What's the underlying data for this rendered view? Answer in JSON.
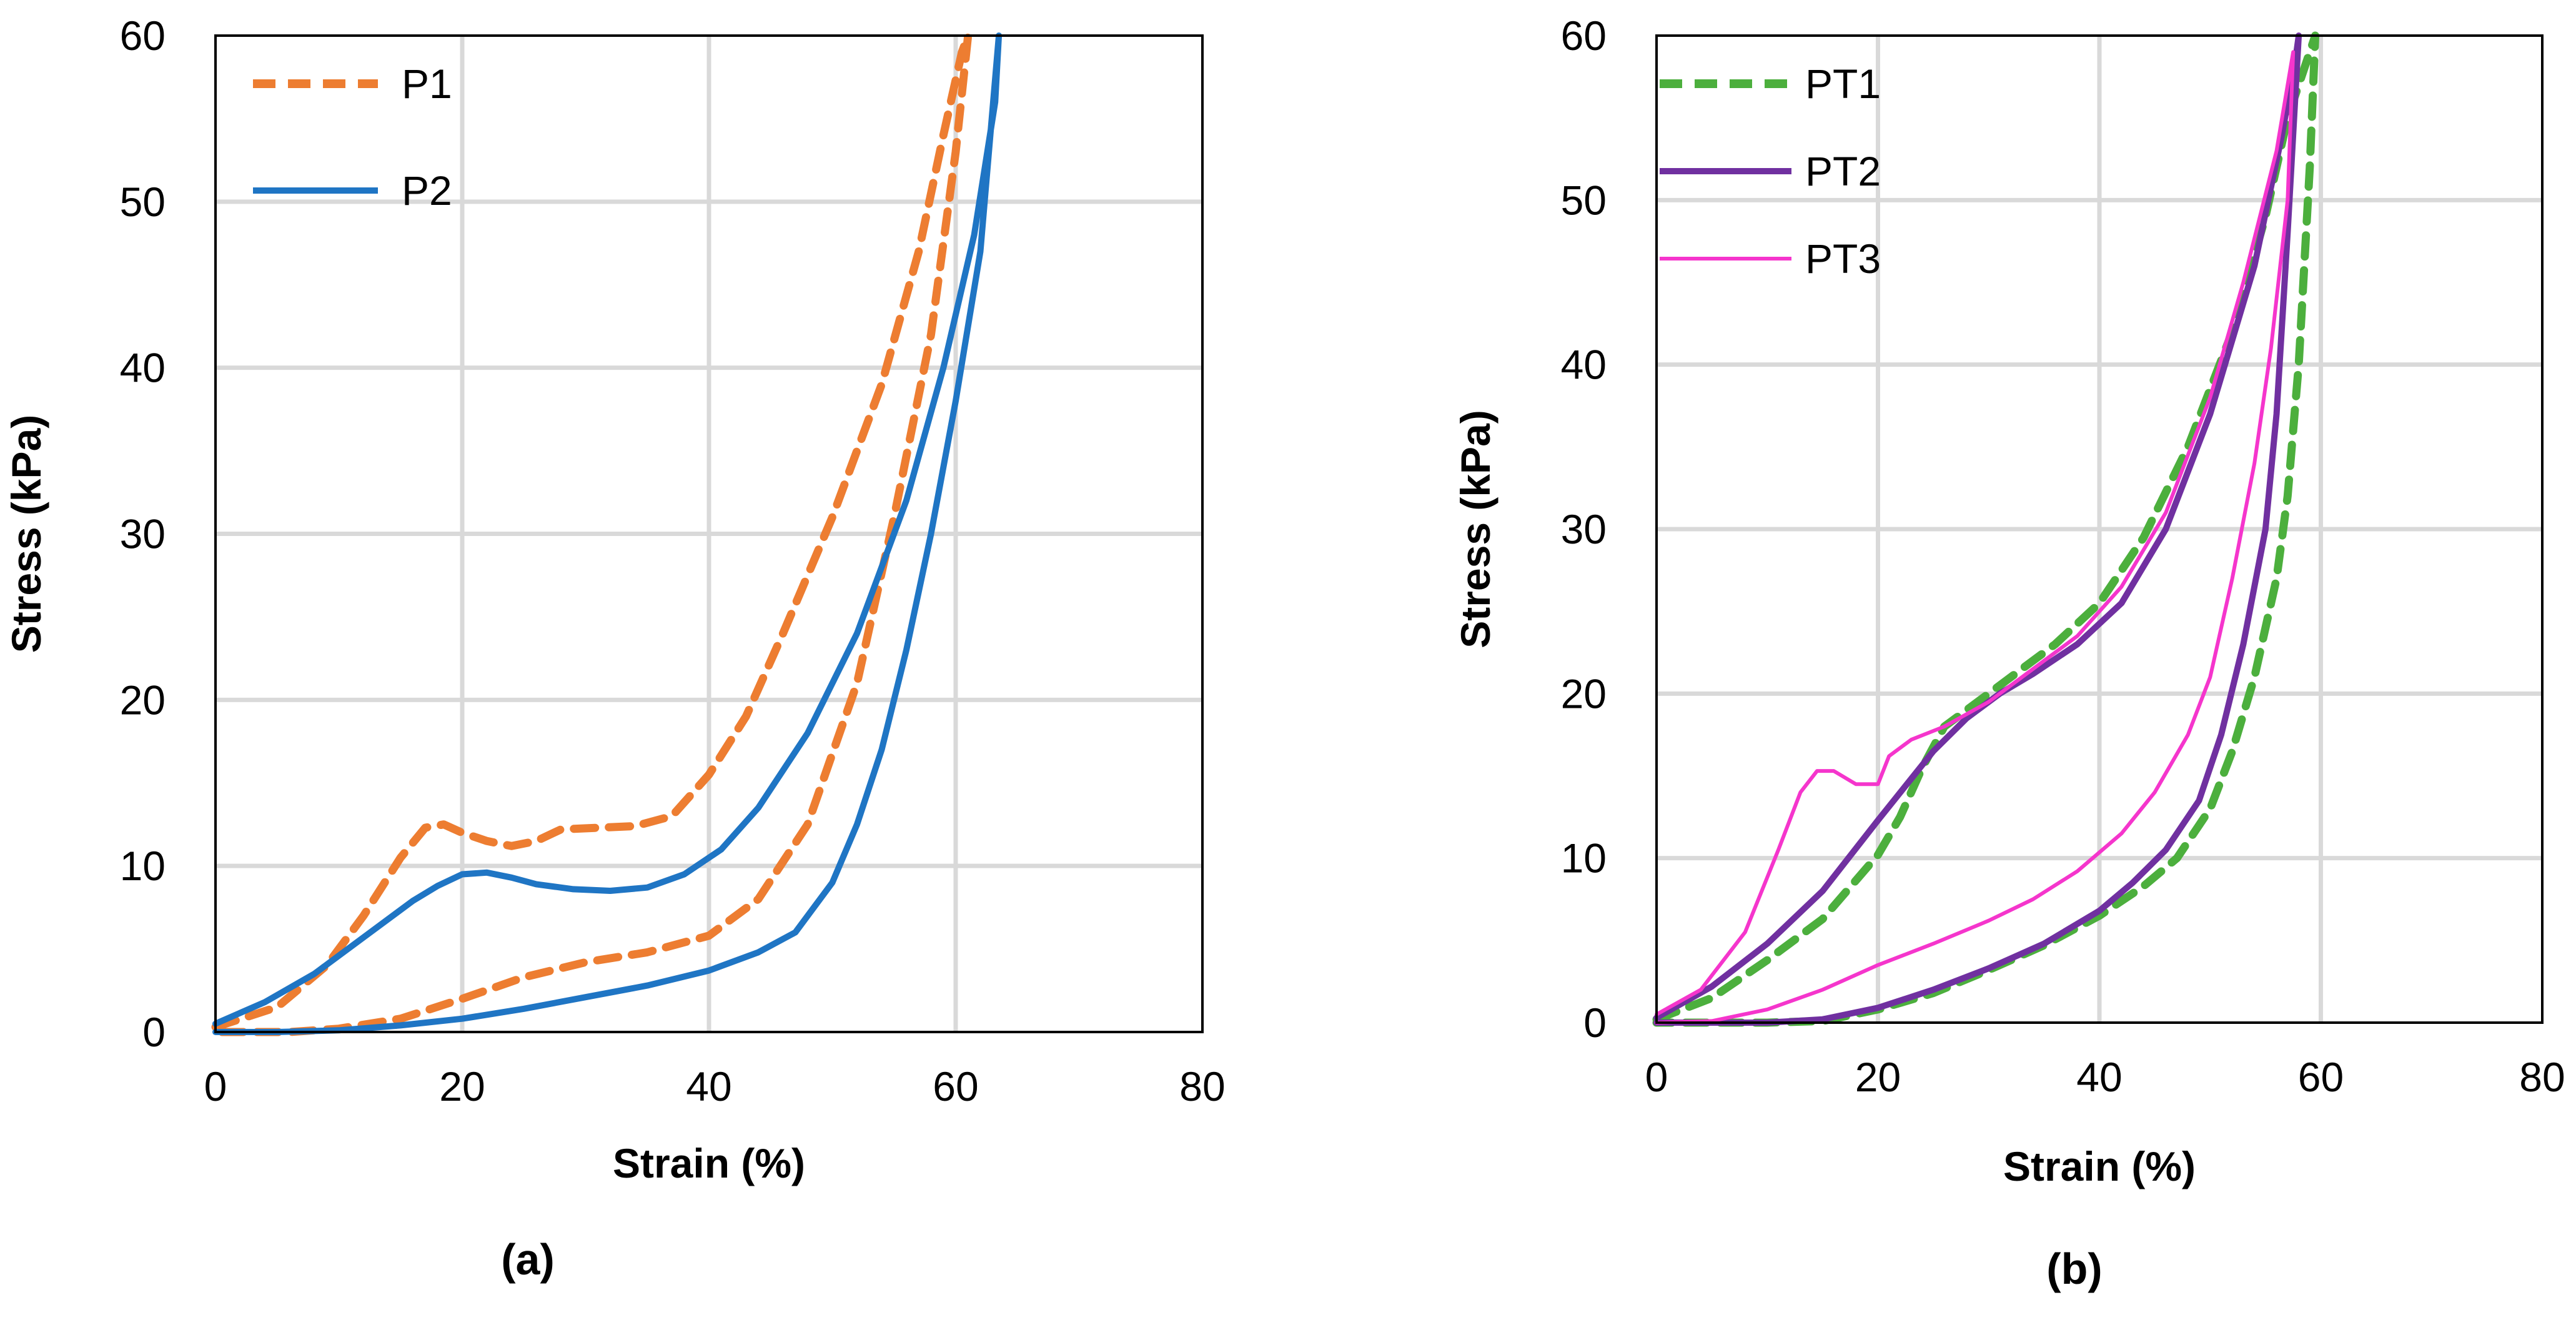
{
  "chart_data": [
    {
      "type": "line",
      "panel_label": "(a)",
      "xlabel": "Strain (%)",
      "ylabel": "Stress (kPa)",
      "xlim": [
        0,
        80
      ],
      "ylim": [
        0,
        60
      ],
      "xticks": [
        0,
        20,
        40,
        60,
        80
      ],
      "yticks": [
        0,
        10,
        20,
        30,
        40,
        50,
        60
      ],
      "grid": true,
      "legend_position": "top-left",
      "series": [
        {
          "name": "P1",
          "color": "#ED7D31",
          "style": "dashed",
          "x": [
            0,
            5,
            9,
            12,
            15,
            17,
            18.5,
            20,
            22,
            24,
            26,
            28,
            31,
            34,
            37,
            40,
            43,
            46,
            50,
            54,
            57,
            59,
            60.5,
            61,
            60,
            58,
            55,
            52,
            48,
            44,
            40,
            35,
            30,
            25,
            20,
            15,
            10,
            6,
            3,
            0
          ],
          "y": [
            0.3,
            1.5,
            4,
            7,
            10.5,
            12.3,
            12.5,
            12,
            11.5,
            11.2,
            11.5,
            12.2,
            12.3,
            12.4,
            13,
            15.5,
            19,
            24,
            31,
            39,
            47,
            54,
            59,
            60,
            53,
            42,
            31,
            21,
            12.5,
            8,
            5.8,
            4.8,
            4.2,
            3.3,
            2,
            0.8,
            0.2,
            0,
            0,
            0
          ]
        },
        {
          "name": "P2",
          "color": "#1F75C4",
          "style": "solid",
          "x": [
            0,
            4,
            8,
            12,
            16,
            18,
            20,
            22,
            24,
            26,
            29,
            32,
            35,
            38,
            41,
            44,
            48,
            52,
            56,
            59,
            61.5,
            63.2,
            63.5,
            62,
            60,
            58,
            56,
            54,
            52,
            50,
            47,
            44,
            40,
            35,
            30,
            25,
            20,
            15,
            10,
            5,
            0
          ],
          "y": [
            0.5,
            1.8,
            3.5,
            5.7,
            7.9,
            8.8,
            9.5,
            9.6,
            9.3,
            8.9,
            8.6,
            8.5,
            8.7,
            9.5,
            11,
            13.5,
            18,
            24,
            32,
            40,
            48,
            56,
            60,
            47,
            38,
            30,
            23,
            17,
            12.5,
            9,
            6,
            4.8,
            3.7,
            2.8,
            2.1,
            1.4,
            0.8,
            0.4,
            0.1,
            0,
            0
          ]
        }
      ]
    },
    {
      "type": "line",
      "panel_label": "(b)",
      "xlabel": "Strain (%)",
      "ylabel": "Stress (kPa)",
      "xlim": [
        0,
        80
      ],
      "ylim": [
        0,
        60
      ],
      "xticks": [
        0,
        20,
        40,
        60,
        80
      ],
      "yticks": [
        0,
        10,
        20,
        30,
        40,
        50,
        60
      ],
      "grid": true,
      "legend_position": "top-left",
      "series": [
        {
          "name": "PT1",
          "color": "#4CAF3D",
          "style": "dashed",
          "x": [
            0,
            5,
            10,
            15,
            20,
            22,
            24,
            26,
            28,
            30,
            33,
            36,
            40,
            44,
            48,
            52,
            55,
            57,
            58.5,
            59,
            59.5,
            59,
            58,
            57,
            56,
            54,
            52,
            50,
            47,
            44,
            40,
            35,
            30,
            25,
            20,
            15,
            10,
            5,
            0
          ],
          "y": [
            0.2,
            1.5,
            3.8,
            6.3,
            10.2,
            12.5,
            15.5,
            18,
            19,
            20,
            21.5,
            23,
            25.5,
            29.5,
            35,
            42,
            49,
            55,
            58,
            59,
            60,
            52,
            40,
            32,
            27,
            21,
            16.5,
            13,
            10,
            8.3,
            6.5,
            4.7,
            3.2,
            1.8,
            0.8,
            0.1,
            0,
            0,
            0
          ]
        },
        {
          "name": "PT2",
          "color": "#7030A0",
          "style": "solid",
          "x": [
            0,
            5,
            10,
            15,
            20,
            25,
            28,
            31,
            34,
            38,
            42,
            46,
            50,
            54,
            56.5,
            57.8,
            58,
            57,
            56,
            55,
            53,
            51,
            49,
            46,
            43,
            40,
            35,
            30,
            25,
            20,
            15,
            10,
            5,
            0
          ],
          "y": [
            0.3,
            2.2,
            4.8,
            8,
            12.3,
            16.5,
            18.5,
            20,
            21.2,
            23,
            25.5,
            30,
            37,
            46,
            54,
            59,
            60,
            48,
            37,
            30,
            23,
            17.5,
            13.5,
            10.5,
            8.5,
            6.8,
            4.8,
            3.3,
            2,
            0.9,
            0.2,
            0,
            0,
            0
          ]
        },
        {
          "name": "PT3",
          "color": "#F535CC",
          "style": "solid",
          "x": [
            0,
            4,
            8,
            11,
            13,
            14.5,
            16,
            18,
            20,
            21,
            23,
            26,
            30,
            34,
            38,
            42,
            46,
            50,
            53,
            56,
            57.5,
            57,
            55.5,
            54,
            52,
            50,
            48,
            45,
            42,
            38,
            34,
            30,
            25,
            20,
            15,
            10,
            5,
            0
          ],
          "y": [
            0.5,
            2,
            5.5,
            10.5,
            14,
            15.3,
            15.3,
            14.5,
            14.5,
            16.2,
            17.2,
            18,
            19.5,
            21.5,
            23.5,
            26.5,
            31,
            38,
            45,
            53,
            59,
            50,
            41,
            34,
            27,
            21,
            17.5,
            14,
            11.5,
            9.2,
            7.5,
            6.2,
            4.8,
            3.5,
            2,
            0.8,
            0.1,
            0
          ]
        }
      ]
    }
  ]
}
